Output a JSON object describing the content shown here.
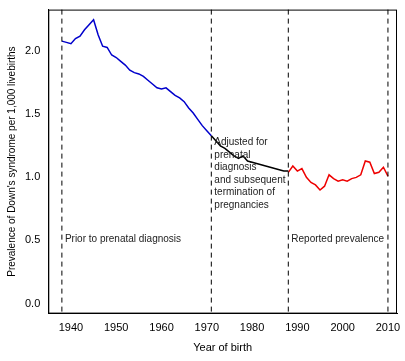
{
  "chart_data": {
    "type": "line",
    "x_label": "Year of birth",
    "y_label": "Prevalence of Down's syndrome per 1,000 livebirths",
    "x": [
      1938,
      1939,
      1940,
      1941,
      1942,
      1943,
      1944,
      1945,
      1946,
      1947,
      1948,
      1949,
      1950,
      1951,
      1952,
      1953,
      1954,
      1955,
      1956,
      1957,
      1958,
      1959,
      1960,
      1961,
      1962,
      1963,
      1964,
      1965,
      1966,
      1967,
      1968,
      1969,
      1970,
      1971,
      1972,
      1973,
      1974,
      1975,
      1976,
      1977,
      1978,
      1979,
      1980,
      1981,
      1982,
      1983,
      1984,
      1985,
      1986,
      1987,
      1988,
      1989,
      1990,
      1991,
      1992,
      1993,
      1994,
      1995,
      1996,
      1997,
      1998,
      1999,
      2000,
      2001,
      2002,
      2003,
      2004,
      2005,
      2006,
      2007,
      2008,
      2009,
      2010
    ],
    "series": [
      {
        "color": "#0000cc",
        "values": [
          2.08,
          2.07,
          2.06,
          2.1,
          2.12,
          2.17,
          2.21,
          2.25,
          2.13,
          2.04,
          2.03,
          1.97,
          1.95,
          1.92,
          1.89,
          1.85,
          1.83,
          1.82,
          1.8,
          1.77,
          1.74,
          1.71,
          1.7,
          1.71,
          1.68,
          1.65,
          1.63,
          1.6,
          1.55,
          1.51,
          1.46,
          1.41,
          1.37,
          1.33,
          null,
          null,
          null,
          null,
          null,
          null,
          null,
          null,
          null,
          null,
          null,
          null,
          null,
          null,
          null,
          null,
          null,
          null,
          null,
          null,
          null,
          null,
          null,
          null,
          null,
          null,
          null,
          null,
          null,
          null,
          null,
          null,
          null,
          null,
          null,
          null,
          null,
          null,
          null
        ]
      },
      {
        "color": "#000000",
        "values": [
          null,
          null,
          null,
          null,
          null,
          null,
          null,
          null,
          null,
          null,
          null,
          null,
          null,
          null,
          null,
          null,
          null,
          null,
          null,
          null,
          null,
          null,
          null,
          null,
          null,
          null,
          null,
          null,
          null,
          null,
          null,
          null,
          null,
          1.33,
          1.29,
          1.25,
          1.23,
          1.2,
          1.17,
          1.15,
          1.17,
          1.13,
          1.12,
          1.11,
          1.1,
          1.09,
          1.08,
          1.07,
          1.06,
          1.05,
          1.05,
          null,
          null,
          null,
          null,
          null,
          null,
          null,
          null,
          null,
          null,
          null,
          null,
          null,
          null,
          null,
          null,
          null,
          null,
          null,
          null,
          null,
          null
        ]
      },
      {
        "color": "#ee0000",
        "values": [
          null,
          null,
          null,
          null,
          null,
          null,
          null,
          null,
          null,
          null,
          null,
          null,
          null,
          null,
          null,
          null,
          null,
          null,
          null,
          null,
          null,
          null,
          null,
          null,
          null,
          null,
          null,
          null,
          null,
          null,
          null,
          null,
          null,
          null,
          null,
          null,
          null,
          null,
          null,
          null,
          null,
          null,
          null,
          null,
          null,
          null,
          null,
          null,
          null,
          null,
          1.04,
          1.09,
          1.05,
          1.07,
          1.0,
          0.96,
          0.94,
          0.9,
          0.93,
          1.02,
          0.99,
          0.97,
          0.98,
          0.97,
          0.99,
          1.0,
          1.02,
          1.13,
          1.12,
          1.03,
          1.04,
          1.08,
          1.01
        ]
      }
    ],
    "xlim": [
      1935,
      2012
    ],
    "xticks": [
      1940,
      1950,
      1960,
      1970,
      1980,
      1990,
      2000,
      2010
    ],
    "ylim": [
      -0.08,
      2.33
    ],
    "yticks": [
      {
        "value": 0,
        "label": "0.0"
      },
      {
        "value": 0.5,
        "label": "0.5"
      },
      {
        "value": 1,
        "label": "1.0"
      },
      {
        "value": 1.5,
        "label": "1.5"
      },
      {
        "value": 2,
        "label": "2.0"
      }
    ],
    "vlines": [
      1938,
      1971,
      1988,
      2010
    ],
    "annotations": [
      {
        "lines": [
          "Prior to prenatal diagnosis"
        ]
      },
      {
        "lines": [
          "Adjusted for",
          "prenatal",
          "diagnosis",
          "and subsequent",
          "termination of",
          "pregnancies"
        ]
      },
      {
        "lines": [
          "Reported prevalence"
        ]
      }
    ],
    "grid": false
  }
}
